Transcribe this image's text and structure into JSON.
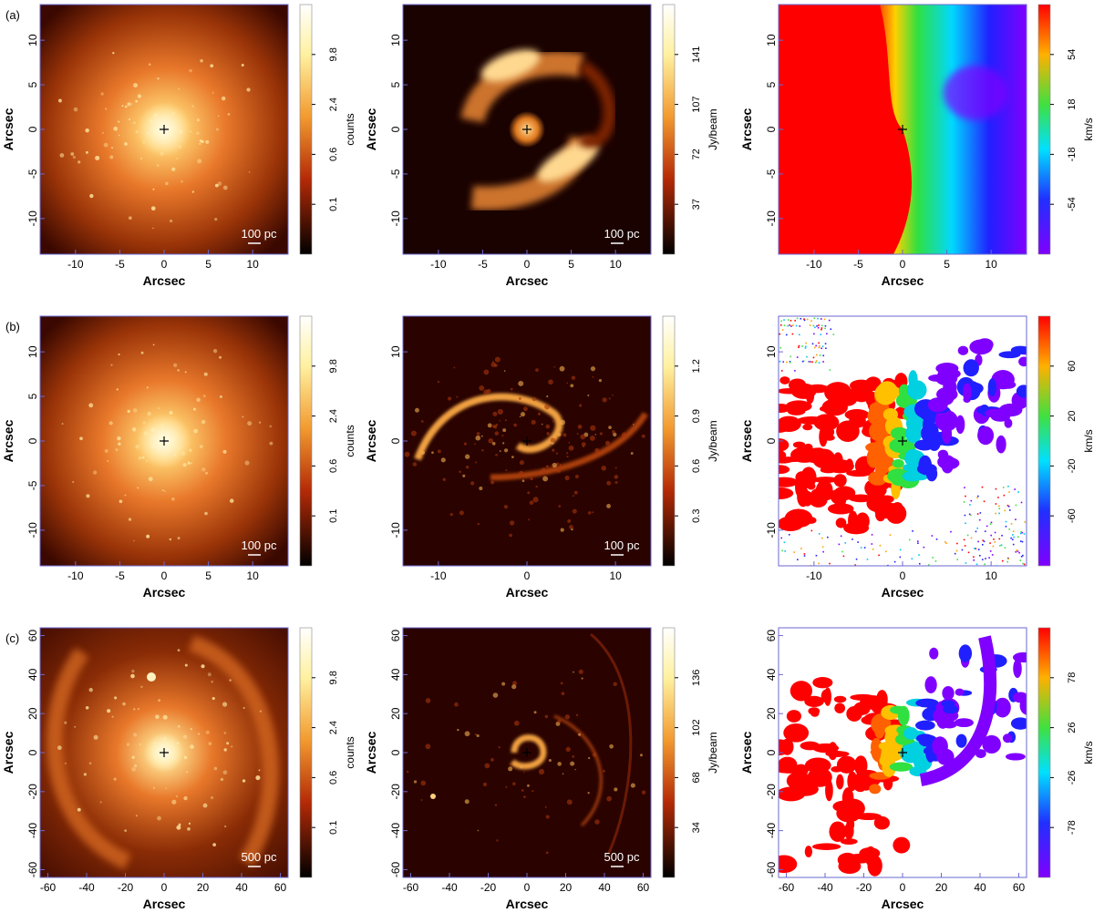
{
  "figure": {
    "row_labels": [
      "(a)",
      "(b)",
      "(c)"
    ],
    "axis_label": "Arcsec",
    "rows": [
      {
        "ticks": [
          "-10",
          "-5",
          "0",
          "5",
          "10"
        ],
        "tick_values": [
          -10,
          -5,
          0,
          5,
          10
        ],
        "range": [
          -14,
          14
        ],
        "panels": [
          {
            "kind": "optical",
            "colorbar_label": "counts",
            "colorbar_ticks": [
              "9.8",
              "2.4",
              "0.6",
              "0.1"
            ],
            "scale_bar": "100 pc"
          },
          {
            "kind": "co_intensity",
            "colorbar_label": "Jy/beam",
            "colorbar_ticks": [
              "141",
              "107",
              "72",
              "37"
            ],
            "scale_bar": "100 pc"
          },
          {
            "kind": "velocity",
            "colorbar_label": "km/s",
            "colorbar_ticks": [
              "54",
              "18",
              "-18",
              "-54"
            ],
            "scale_bar": ""
          }
        ]
      },
      {
        "ticks": [
          "-10",
          "-5",
          "0",
          "5",
          "10"
        ],
        "tick_values": [
          -10,
          -5,
          0,
          5,
          10
        ],
        "range": [
          -14,
          14
        ],
        "panels": [
          {
            "kind": "optical",
            "colorbar_label": "counts",
            "colorbar_ticks": [
              "9.8",
              "2.4",
              "0.6",
              "0.1"
            ],
            "scale_bar": "100 pc"
          },
          {
            "kind": "co_intensity",
            "colorbar_label": "Jy/beam",
            "colorbar_ticks": [
              "1.2",
              "0.9",
              "0.6",
              "0.3"
            ],
            "scale_bar": "100 pc",
            "ticks": [
              "-10",
              "0",
              "10"
            ],
            "tick_values": [
              -10,
              0,
              10
            ]
          },
          {
            "kind": "velocity",
            "colorbar_label": "km/s",
            "colorbar_ticks": [
              "60",
              "20",
              "-20",
              "-60"
            ],
            "scale_bar": "",
            "ticks": [
              "-10",
              "0",
              "10"
            ],
            "tick_values": [
              -10,
              0,
              10
            ]
          }
        ]
      },
      {
        "ticks": [
          "-60",
          "-40",
          "-20",
          "0",
          "20",
          "40",
          "60"
        ],
        "tick_values": [
          -60,
          -40,
          -20,
          0,
          20,
          40,
          60
        ],
        "range": [
          -64,
          64
        ],
        "panels": [
          {
            "kind": "optical",
            "colorbar_label": "counts",
            "colorbar_ticks": [
              "9.8",
              "2.4",
              "0.6",
              "0.1"
            ],
            "scale_bar": "500 pc"
          },
          {
            "kind": "co_intensity",
            "colorbar_label": "Jy/beam",
            "colorbar_ticks": [
              "136",
              "102",
              "68",
              "34"
            ],
            "scale_bar": "500 pc"
          },
          {
            "kind": "velocity",
            "colorbar_label": "km/s",
            "colorbar_ticks": [
              "78",
              "26",
              "-26",
              "-78"
            ],
            "scale_bar": ""
          }
        ]
      }
    ]
  },
  "colors": {
    "frame": "#6a6ad0",
    "optical_core": "#fff1b0",
    "optical_mid": "#e8782a",
    "optical_edge": "#3a0800",
    "co_bright": "#ffd890",
    "co_background": "#2a0300",
    "velocity_red": "#ff0000",
    "velocity_green": "#30e040",
    "velocity_blue": "#2020ff",
    "velocity_purple": "#8000ff"
  }
}
